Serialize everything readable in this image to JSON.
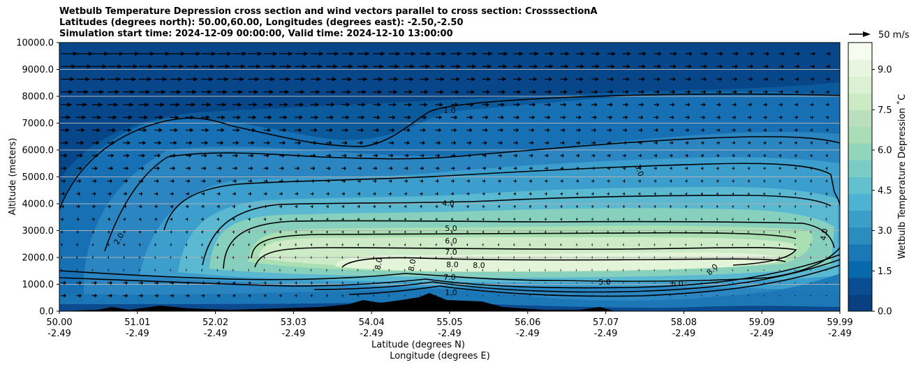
{
  "title": {
    "line1": "Wetbulb Temperature Depression cross section and wind vectors parallel to cross section: CrosssectionA",
    "line2": "Latitudes (degrees north): 50.00,60.00, Longitudes (degrees east): -2.50,-2.50",
    "line3": "Simulation start time: 2024-12-09 00:00:00, Valid time: 2024-12-10 13:00:00"
  },
  "axes": {
    "ylabel": "Altitude (meters)",
    "xlabel1": "Latitude (degrees N)",
    "xlabel2": "Longitude (degrees E)",
    "colorbar_label": "Wetbulb Temperature Depression ˚C",
    "quiver_key": "50 m/s"
  },
  "chart_data": {
    "type": "heatmap",
    "xlim": [
      50.0,
      59.99
    ],
    "ylim": [
      0,
      10000
    ],
    "x_ticks": [
      {
        "lat": "50.00",
        "lon": "-2.49"
      },
      {
        "lat": "51.01",
        "lon": "-2.49"
      },
      {
        "lat": "52.02",
        "lon": "-2.49"
      },
      {
        "lat": "53.03",
        "lon": "-2.49"
      },
      {
        "lat": "54.04",
        "lon": "-2.49"
      },
      {
        "lat": "55.05",
        "lon": "-2.49"
      },
      {
        "lat": "56.06",
        "lon": "-2.49"
      },
      {
        "lat": "57.07",
        "lon": "-2.49"
      },
      {
        "lat": "58.08",
        "lon": "-2.49"
      },
      {
        "lat": "59.09",
        "lon": "-2.49"
      },
      {
        "lat": "59.99",
        "lon": "-2.49"
      }
    ],
    "y_ticks": [
      "0.0",
      "1000.0",
      "2000.0",
      "3000.0",
      "4000.0",
      "5000.0",
      "6000.0",
      "7000.0",
      "8000.0",
      "9000.0",
      "10000.0"
    ],
    "colorbar_ticks": [
      "0.0",
      "1.5",
      "3.0",
      "4.5",
      "6.0",
      "7.5",
      "9.0"
    ],
    "colorbar_range": [
      0,
      10
    ],
    "horizontal_grid": true,
    "contour_labels": [
      "1.0",
      "3.0",
      "4.0",
      "5.0",
      "6.0",
      "7.0",
      "8.0",
      "2.0",
      "5.0",
      "6.0",
      "8.0",
      "7.0",
      "1.0",
      "4.0",
      "8.0",
      "8.0",
      "8.0"
    ],
    "colors": {
      "low": "#084081",
      "mid": "#4eb3d3",
      "high": "#f7fcf0"
    }
  }
}
